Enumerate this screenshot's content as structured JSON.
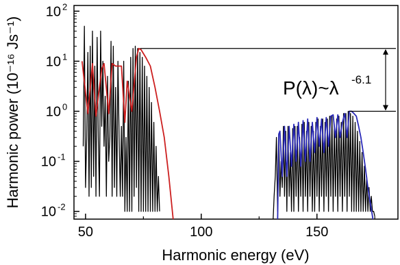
{
  "chart_data": {
    "type": "line",
    "xlabel": "Harmonic energy (eV)",
    "ylabel": "Harmonic power (10⁻¹⁶ Js⁻¹)",
    "log_y": true,
    "xlim": [
      45,
      185
    ],
    "ylim": [
      0.007,
      130
    ],
    "grid": false,
    "x_ticks": [
      50,
      100,
      150
    ],
    "y_ticks": [
      {
        "value": 0.01,
        "mantissa": "10",
        "exponent": "-2"
      },
      {
        "value": 0.1,
        "mantissa": "10",
        "exponent": "-1"
      },
      {
        "value": 1,
        "mantissa": "10",
        "exponent": "0"
      },
      {
        "value": 10,
        "mantissa": "10",
        "exponent": "1"
      },
      {
        "value": 100,
        "mantissa": "10",
        "exponent": "2"
      }
    ],
    "series": [
      {
        "color": "#000000",
        "x": [
          49.0,
          49.5,
          50.0,
          50.5,
          51.0,
          51.5,
          52.0,
          52.5,
          53.0,
          53.5,
          54.0,
          54.5,
          55.0,
          55.5,
          56.0,
          56.5,
          57.0,
          57.5,
          58.0,
          58.5,
          59.0,
          59.5,
          60.0,
          60.5,
          61.0,
          61.5,
          62.0,
          62.5,
          63.0,
          63.5,
          64.0,
          64.5,
          65.0,
          65.5,
          66.0,
          66.5,
          67.0,
          67.5,
          68.0,
          68.5,
          69.0,
          69.5,
          70.0,
          70.5,
          71.0,
          71.5,
          72.0,
          72.5,
          73.0,
          73.5,
          74.0,
          74.5,
          75.0,
          75.5,
          76.0,
          76.5,
          77.0,
          77.5,
          78.0,
          78.5,
          79.0,
          79.5,
          80.0,
          80.5,
          81.0,
          81.5,
          82.0
        ],
        "y": [
          0.2,
          50,
          0.03,
          0.3,
          15,
          0.02,
          20,
          0.03,
          40,
          0.05,
          8,
          0.02,
          30,
          0.3,
          0.02,
          40,
          0.5,
          10,
          0.2,
          2,
          0.02,
          5,
          0.1,
          0.3,
          25,
          0.02,
          20,
          0.03,
          3,
          0.02,
          10,
          0.3,
          0.02,
          0.5,
          0.02,
          10,
          0.01,
          0.3,
          0.01,
          4,
          0.01,
          12,
          0.01,
          18,
          0.02,
          20,
          0.03,
          18,
          0.01,
          15,
          0.01,
          12,
          0.01,
          8,
          0.01,
          5,
          0.01,
          3,
          0.01,
          1.5,
          0.01,
          0.6,
          0.01,
          0.2,
          0.01,
          0.05,
          0.01
        ]
      },
      {
        "color": "#000000",
        "x": [
          131,
          131.5,
          132,
          132.5,
          133,
          133.5,
          134,
          134.5,
          135,
          135.5,
          136,
          136.5,
          137,
          137.5,
          138,
          138.5,
          139,
          139.5,
          140,
          140.5,
          141,
          141.5,
          142,
          142.5,
          143,
          143.5,
          144,
          144.5,
          145,
          145.5,
          146,
          146.5,
          147,
          147.5,
          148,
          148.5,
          149,
          149.5,
          150,
          150.5,
          151,
          151.5,
          152,
          152.5,
          153,
          153.5,
          154,
          154.5,
          155,
          155.5,
          156,
          156.5,
          157,
          157.5,
          158,
          158.5,
          159,
          159.5,
          160,
          160.5,
          161,
          161.5,
          162,
          162.5,
          163,
          163.5,
          164,
          164.5,
          165,
          165.5,
          166,
          166.5,
          167,
          167.5,
          168,
          168.5,
          169,
          169.5,
          170,
          170.5,
          171,
          171.5,
          172,
          172.5,
          173,
          173.5,
          174,
          174.5,
          175
        ],
        "y": [
          0.006,
          0.02,
          0.05,
          0.3,
          0.01,
          0.35,
          0.02,
          0.1,
          0.03,
          0.5,
          0.02,
          0.4,
          0.01,
          0.5,
          0.02,
          0.15,
          0.01,
          0.45,
          0.01,
          0.5,
          0.02,
          0.5,
          0.01,
          0.3,
          0.02,
          0.55,
          0.01,
          0.6,
          0.02,
          0.4,
          0.01,
          0.6,
          0.02,
          0.5,
          0.01,
          0.4,
          0.01,
          0.6,
          0.02,
          0.7,
          0.01,
          0.5,
          0.02,
          0.7,
          0.01,
          0.6,
          0.02,
          0.7,
          0.01,
          0.8,
          0.02,
          0.8,
          0.01,
          0.5,
          0.02,
          0.7,
          0.01,
          0.8,
          0.02,
          0.6,
          0.01,
          0.9,
          0.02,
          0.9,
          0.01,
          1.0,
          0.02,
          0.9,
          0.01,
          0.8,
          0.01,
          0.6,
          0.01,
          0.4,
          0.01,
          0.25,
          0.01,
          0.15,
          0.01,
          0.08,
          0.01,
          0.05,
          0.01,
          0.03,
          0.01,
          0.02,
          0.01,
          0.01,
          0.008
        ]
      },
      {
        "color": "#cc1f1f",
        "x": [
          48.5,
          51,
          53,
          54.5,
          57,
          58,
          60,
          61.5,
          63,
          65,
          65.5,
          67,
          68,
          70,
          72,
          73,
          74,
          76,
          78,
          80,
          82,
          84,
          86,
          88
        ],
        "y": [
          10,
          0.9,
          9,
          0.8,
          7,
          9,
          0.9,
          9,
          8,
          8,
          8,
          0.6,
          4,
          1,
          12,
          18,
          17,
          12,
          8,
          3,
          1,
          0.3,
          0.05,
          0.006
        ]
      },
      {
        "color": "#2a2ab8",
        "x": [
          133,
          133.5,
          134,
          135,
          136,
          137,
          138,
          139,
          140,
          141,
          142,
          143,
          144,
          145,
          146,
          147,
          148,
          149,
          150,
          151,
          152,
          153,
          154,
          155,
          156,
          157,
          158,
          159,
          160,
          161,
          162,
          163,
          164,
          165,
          166,
          167,
          168,
          169,
          170,
          171,
          172,
          173,
          174,
          175
        ],
        "y": [
          0.006,
          0.35,
          0.4,
          0.05,
          0.5,
          0.05,
          0.5,
          0.08,
          0.55,
          0.1,
          0.6,
          0.08,
          0.65,
          0.1,
          0.7,
          0.1,
          0.6,
          0.15,
          0.75,
          0.2,
          0.7,
          0.15,
          0.75,
          0.2,
          0.8,
          0.85,
          0.3,
          0.85,
          0.3,
          0.6,
          0.9,
          0.3,
          1.0,
          1.0,
          0.9,
          0.8,
          0.5,
          0.3,
          0.15,
          0.07,
          0.03,
          0.015,
          0.008,
          0.004
        ]
      }
    ],
    "annotation": {
      "text_main": "P(λ)~λ",
      "text_exp": "-6.1",
      "upper_x": 73,
      "upper_y": 18,
      "lower_x": 165,
      "lower_y": 1.0
    }
  }
}
